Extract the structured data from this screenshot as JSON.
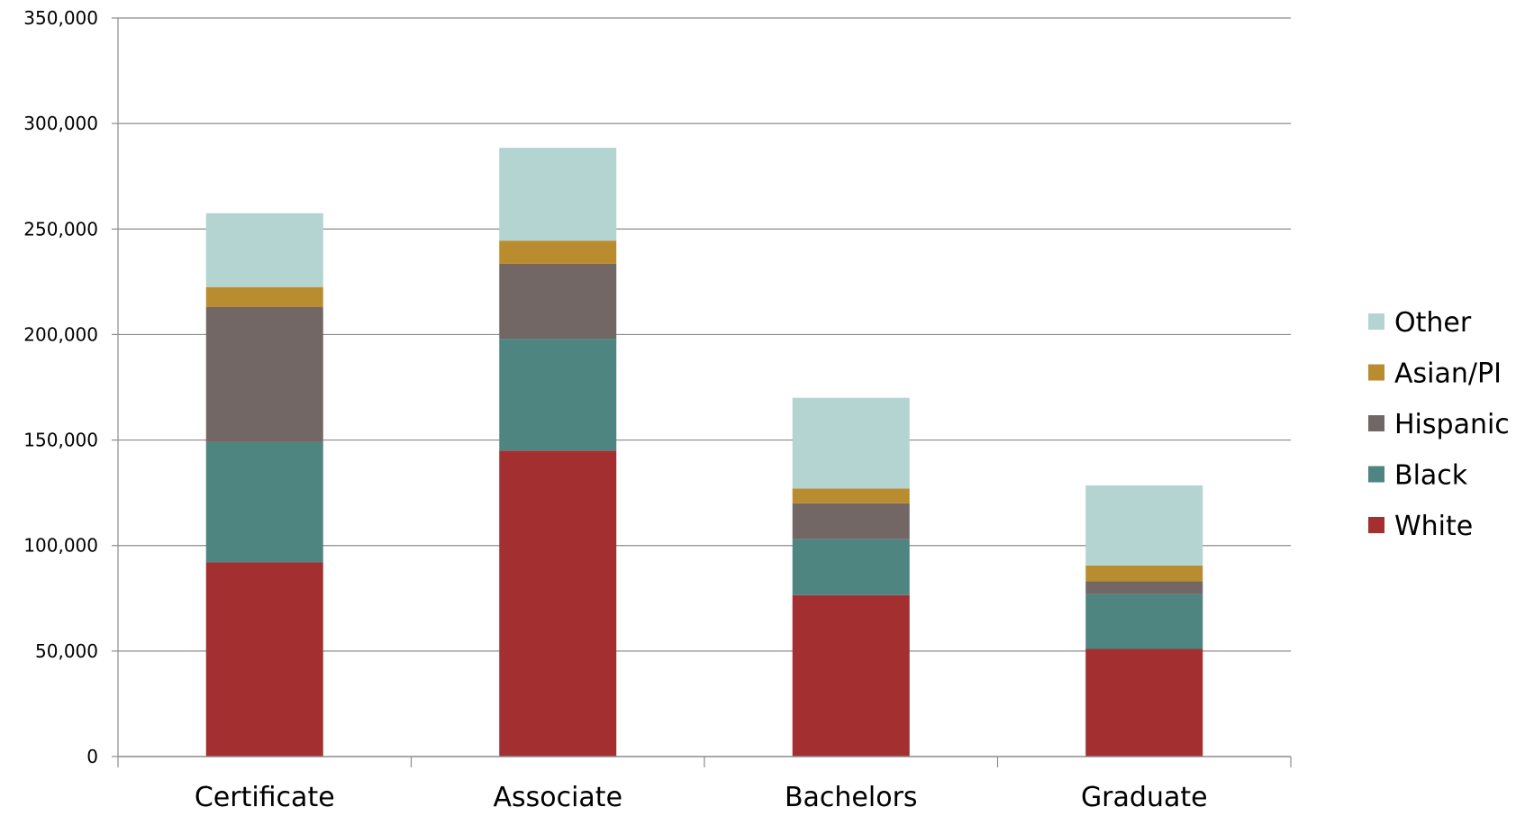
{
  "chart_data": {
    "type": "bar",
    "stacked": true,
    "categories": [
      "Certificate",
      "Associate",
      "Bachelors",
      "Graduate"
    ],
    "series": [
      {
        "name": "White",
        "color": "#a32f31",
        "values": [
          92000,
          145000,
          76500,
          51000
        ]
      },
      {
        "name": "Black",
        "color": "#4e8580",
        "values": [
          57000,
          53000,
          26500,
          26000
        ]
      },
      {
        "name": "Hispanic",
        "color": "#736766",
        "values": [
          64000,
          35500,
          17000,
          6000
        ]
      },
      {
        "name": "Asian/PI",
        "color": "#b98d2f",
        "values": [
          9500,
          11000,
          7000,
          7500
        ]
      },
      {
        "name": "Other",
        "color": "#b4d4d2",
        "values": [
          35000,
          44000,
          43000,
          38000
        ]
      }
    ],
    "ylim": [
      0,
      350000
    ],
    "yticks": [
      0,
      50000,
      100000,
      150000,
      200000,
      250000,
      300000,
      350000
    ],
    "ytick_labels": [
      "0",
      "50,000",
      "100,000",
      "150,000",
      "200,000",
      "250,000",
      "300,000",
      "350,000"
    ],
    "grid": true,
    "legend_position": "right",
    "title": "",
    "xlabel": "",
    "ylabel": ""
  }
}
